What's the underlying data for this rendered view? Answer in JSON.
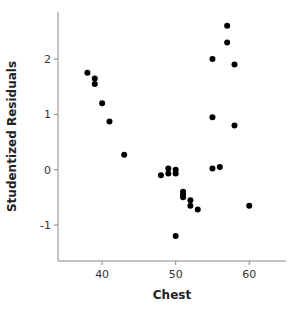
{
  "chart_data": {
    "type": "scatter",
    "x": [
      38,
      39,
      39,
      40,
      41,
      43,
      48,
      49,
      49,
      50,
      50,
      50,
      51,
      51,
      51,
      52,
      52,
      53,
      55,
      55,
      55,
      56,
      57,
      57,
      58,
      58,
      60
    ],
    "values": [
      1.75,
      1.65,
      1.55,
      1.2,
      0.87,
      0.27,
      -0.1,
      0.02,
      -0.07,
      0.0,
      -0.07,
      -1.2,
      -0.4,
      -0.45,
      -0.5,
      -0.55,
      -0.65,
      -0.72,
      2.0,
      0.95,
      0.02,
      0.05,
      2.6,
      2.3,
      0.8,
      1.9,
      -0.65
    ],
    "xlabel": "Chest",
    "ylabel": "Studentized Residuals",
    "xlim": [
      34,
      65
    ],
    "ylim": [
      -1.65,
      2.85
    ],
    "xticks": [
      40,
      50,
      60
    ],
    "yticks": [
      -1,
      0,
      1,
      2
    ],
    "color": "black"
  }
}
